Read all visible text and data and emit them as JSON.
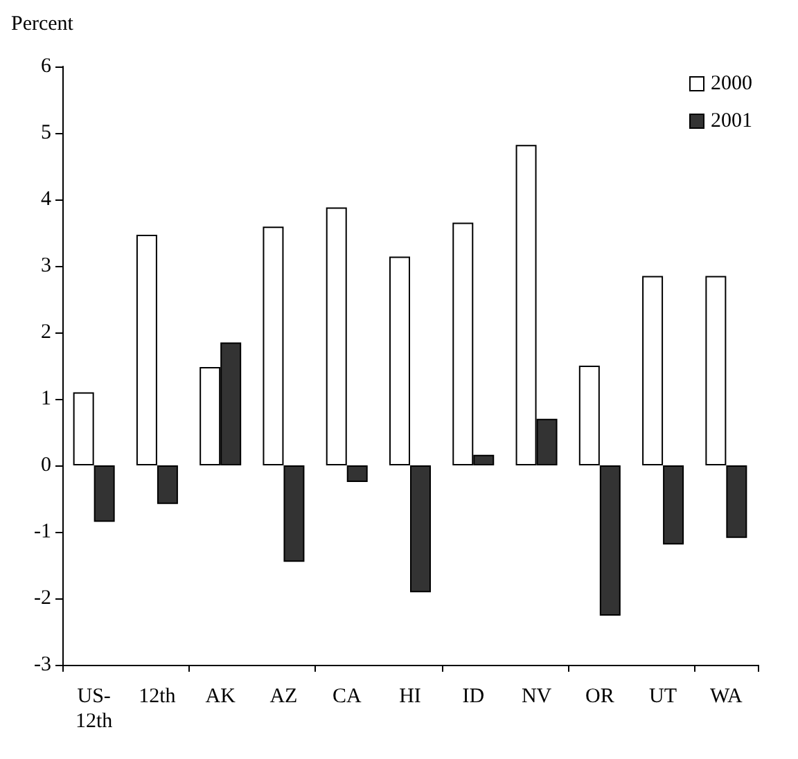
{
  "chart_data": {
    "type": "bar",
    "ylabel": "Percent",
    "categories": [
      "US-12th",
      "12th",
      "AK",
      "AZ",
      "CA",
      "HI",
      "ID",
      "NV",
      "OR",
      "UT",
      "WA"
    ],
    "series": [
      {
        "name": "2000",
        "color": "#ffffff",
        "values": [
          1.1,
          3.47,
          1.48,
          3.59,
          3.88,
          3.14,
          3.65,
          4.82,
          1.5,
          2.85,
          2.85
        ]
      },
      {
        "name": "2001",
        "color": "#333333",
        "values": [
          -0.85,
          -0.58,
          1.85,
          -1.45,
          -0.25,
          -1.91,
          0.16,
          0.7,
          -2.26,
          -1.19,
          -1.09
        ]
      }
    ],
    "ylim": [
      -3,
      6
    ],
    "yticks": [
      -3,
      -2,
      -1,
      0,
      1,
      2,
      3,
      4,
      5,
      6
    ],
    "grid": false,
    "legend": "top right"
  }
}
